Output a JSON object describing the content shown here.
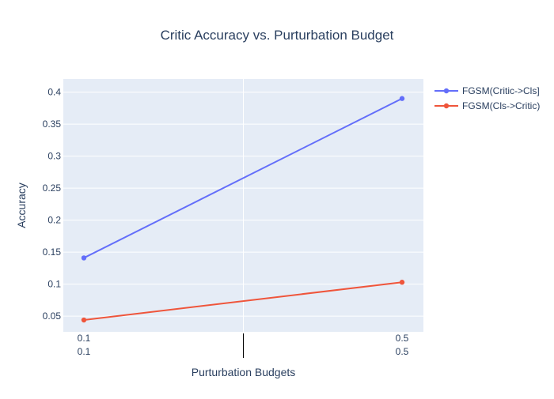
{
  "chart_data": {
    "type": "line",
    "title": "Critic Accuracy vs. Purturbation Budget",
    "xlabel": "Purturbation Budgets",
    "ylabel": "Accuracy",
    "x_categories": [
      "0.1",
      "0.5"
    ],
    "x_category_sublabels": [
      "0.1",
      "0.5"
    ],
    "yticks": [
      "0.05",
      "0.1",
      "0.15",
      "0.2",
      "0.25",
      "0.3",
      "0.35",
      "0.4"
    ],
    "ylim": [
      0.0255,
      0.4205
    ],
    "grid": true,
    "legend_position": "top-right",
    "series": [
      {
        "name": "FGSM(Critic->Cls]",
        "x": [
          "0.1",
          "0.5"
        ],
        "y": [
          0.141,
          0.39
        ],
        "color": "#636efa"
      },
      {
        "name": "FGSM(Cls->Critic)",
        "x": [
          "0.1",
          "0.5"
        ],
        "y": [
          0.044,
          0.103
        ],
        "color": "#ef553b"
      }
    ]
  },
  "colors": {
    "plot_background": "#e5ecf6",
    "grid": "#ffffff",
    "text": "#2a3f5f",
    "tick_text": "#2a3f5f"
  }
}
